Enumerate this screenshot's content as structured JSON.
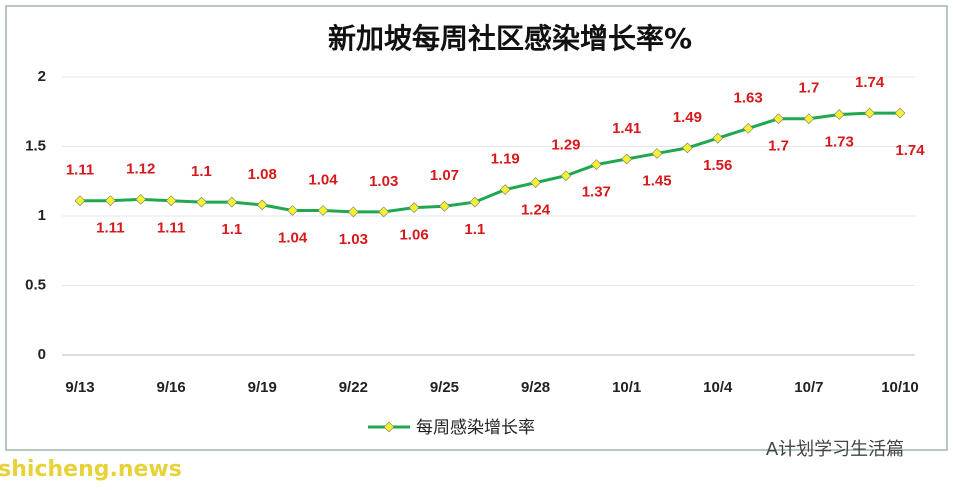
{
  "chart_data": {
    "type": "line",
    "title": "新加坡每周社区感染增长率%",
    "categories": [
      "9/13",
      null,
      null,
      "9/16",
      null,
      null,
      "9/19",
      null,
      null,
      "9/22",
      null,
      null,
      "9/25",
      null,
      null,
      "9/28",
      null,
      null,
      "10/1",
      null,
      null,
      "10/4",
      null,
      null,
      "10/7",
      null,
      null,
      "10/10"
    ],
    "series": [
      {
        "name": "每周感染增长率",
        "color": "#1fa84f",
        "marker_color": "#f2f230",
        "values": [
          1.11,
          1.11,
          1.12,
          1.11,
          1.1,
          1.1,
          1.08,
          1.04,
          1.04,
          1.03,
          1.03,
          1.06,
          1.07,
          1.1,
          1.19,
          1.24,
          1.29,
          1.37,
          1.41,
          1.45,
          1.49,
          1.56,
          1.63,
          1.7,
          1.7,
          1.73,
          1.74,
          1.74
        ]
      }
    ],
    "ylim": [
      0,
      2
    ],
    "yticks": [
      0,
      0.5,
      1,
      1.5,
      2
    ],
    "grid": true,
    "label_color": "#d7191c",
    "annotations": [
      "A计划学习生活篇",
      "shicheng.news"
    ]
  }
}
